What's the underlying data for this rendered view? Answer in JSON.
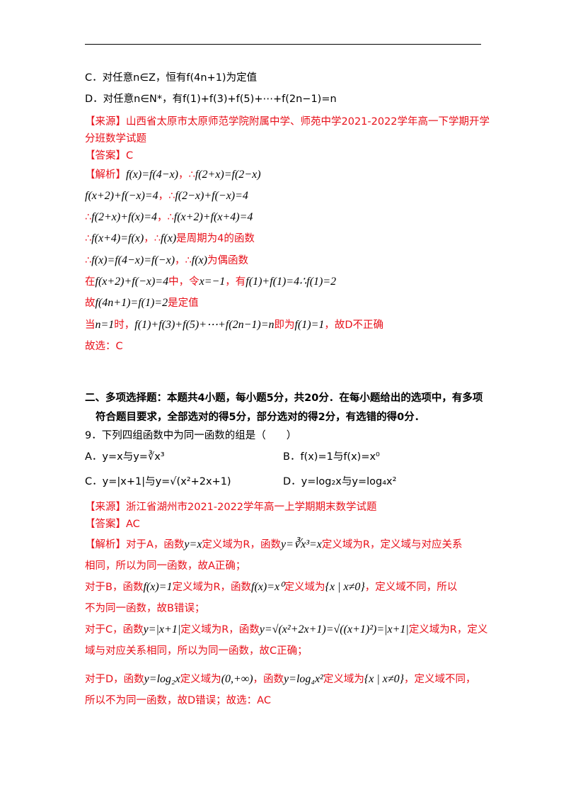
{
  "q8": {
    "options": {
      "C": "C．对任意n∈Z，恒有f(4n+1)为定值",
      "D": "D．对任意n∈N*，有f(1)+f(3)+f(5)+⋯+f(2n−1)=n"
    },
    "source": [
      "【来源】山西省太原市太原师范学院附属中学、师苑中学2021-2022学年高一下学期开学",
      "分班数学试题"
    ],
    "answer": "【答案】C",
    "analysis": [
      [
        "【解析】",
        "f(x)=f(4−x)",
        "，∴",
        "f(2+x)=f(2−x)"
      ],
      [
        "f(x+2)+f(−x)=4",
        "，∴",
        "f(2−x)+f(−x)=4"
      ],
      [
        "∴",
        "f(2+x)+f(x)=4",
        "，∴",
        "f(x+2)+f(x+4)=4"
      ],
      [
        "∴",
        "f(x+4)=f(x)",
        "，∴",
        "f(x)",
        "是周期为4的函数"
      ],
      [
        "∴",
        "f(x)=f(4−x)=f(−x)",
        "，∴",
        "f(x)",
        "为偶函数"
      ],
      [
        "在",
        "f(x+2)+f(−x)=4",
        "中，令",
        "x=−1",
        "，有",
        "f(1)+f(1)=4∴f(1)=2"
      ],
      [
        "故",
        "f(4n+1)=f(1)=2",
        "是定值"
      ],
      [
        "当",
        "n=1",
        "时，",
        "f(1)+f(3)+f(5)+⋯+f(2n−1)=n",
        "即为",
        "f(1)=1",
        "，故D不正确"
      ],
      [
        "故选：C"
      ]
    ]
  },
  "section2": {
    "heading": [
      "二、多项选择题：本题共4小题，每小题5分，共20分．在每小题给出的选项中，有多项",
      "符合题目要求，全部选对的得5分，部分选对的得2分，有选错的得0分．"
    ],
    "q9": {
      "stem": "9．下列四组函数中为同一函数的组是（　　）",
      "options": {
        "A": "A．y=x与y=∛x³",
        "B": "B．f(x)=1与f(x)=x⁰",
        "C": "C．y=|x+1|与y=√(x²+2x+1)",
        "D": "D．y=log₂x与y=log₄x²"
      },
      "source": "【来源】浙江省湖州市2021-2022学年高一上学期期末数学试题",
      "answer": "【答案】AC",
      "analysis": [
        [
          "【解析】对于A，函数",
          "y=x",
          "定义域为R，函数",
          "y=∛x³=x",
          "定义域为R，定义域与对应关系"
        ],
        [
          "相同，所以为同一函数，故A正确；"
        ],
        [
          "对于B，函数",
          "f(x)=1",
          "定义域为R，函数",
          "f(x)=x⁰",
          "定义域为",
          "{x | x≠0}",
          "，定义域不同，所以"
        ],
        [
          "不为同一函数，故B错误；"
        ],
        [
          "对于C，函数",
          "y=|x+1|",
          "定义域为R，函数",
          "y=√(x²+2x+1)=√((x+1)²)=|x+1|",
          "定义域为R，定义"
        ],
        [
          "域与对应关系相同，所以为同一函数，故C正确；"
        ],
        [
          "对于D，函数",
          "y=log₂x",
          "定义域为",
          "(0,+∞)",
          "，函数",
          "y=log₄x²",
          "定义域为",
          "{x | x≠0}",
          "，定义域不同，"
        ],
        [
          "所以不为同一函数，故D错误；故选：AC"
        ]
      ]
    }
  }
}
